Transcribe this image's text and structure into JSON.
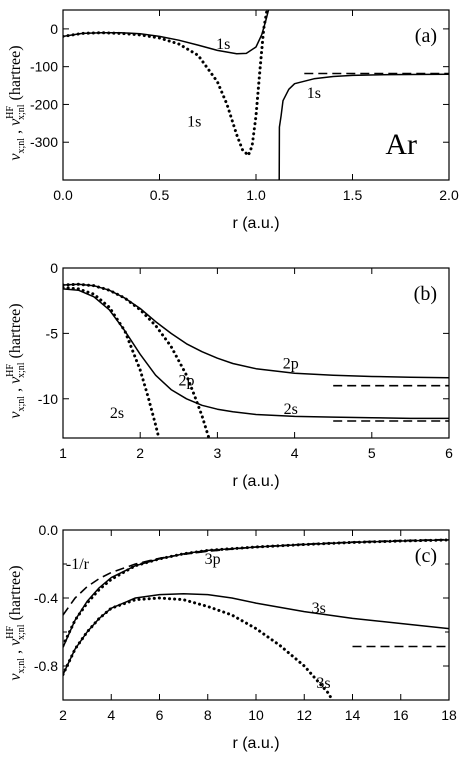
{
  "chart_data": [
    {
      "type": "line",
      "panel_label": "(a)",
      "annotation": "Ar",
      "xlabel": "r  (a.u.)",
      "ylabel": {
        "symbol": "v",
        "sub": "x;nl",
        "sep": " ,  ",
        "hf_symbol": "v",
        "hf_sup": "HF",
        "hf_sub": "x;nl",
        "unit": "(hartree)"
      },
      "xlim": [
        0,
        2.0
      ],
      "ylim": [
        -400,
        50
      ],
      "xticks": [
        0,
        0.5,
        1.0,
        1.5,
        2.0
      ],
      "xtick_labels": [
        "0.0",
        "0.5",
        "1.0",
        "1.5",
        "2.0"
      ],
      "yticks": [
        0,
        -100,
        -200,
        -300
      ],
      "ytick_labels": [
        "0",
        "-100",
        "-200",
        "-300"
      ],
      "series": [
        {
          "style": "solid",
          "x": [
            0,
            0.1,
            0.2,
            0.3,
            0.4,
            0.5,
            0.6,
            0.7,
            0.8,
            0.9,
            0.95,
            1.0,
            1.03,
            1.05,
            1.07
          ],
          "y": [
            -20,
            -12,
            -10,
            -10,
            -13,
            -20,
            -30,
            -43,
            -57,
            -66,
            -65,
            -48,
            -15,
            20,
            60
          ]
        },
        {
          "style": "solid",
          "x": [
            1.12,
            1.121,
            1.13,
            1.14,
            1.17,
            1.2,
            1.3,
            1.4,
            1.5,
            1.7,
            2.0
          ],
          "y": [
            -410,
            -260,
            -230,
            -190,
            -160,
            -145,
            -132,
            -126,
            -123,
            -121,
            -120
          ]
        },
        {
          "style": "dotted",
          "x": [
            0,
            0.1,
            0.2,
            0.3,
            0.4,
            0.5,
            0.6,
            0.7,
            0.8,
            0.85,
            0.9,
            0.93,
            0.96,
            0.98,
            1.0,
            1.02,
            1.04,
            1.06
          ],
          "y": [
            -20,
            -12,
            -10,
            -12,
            -16,
            -24,
            -40,
            -70,
            -140,
            -200,
            -280,
            -320,
            -335,
            -310,
            -230,
            -110,
            0,
            60
          ]
        },
        {
          "style": "dashed",
          "x": [
            1.25,
            2.0
          ],
          "y": [
            -118,
            -118
          ]
        }
      ],
      "labels": [
        {
          "text": "1s",
          "x": 0.83,
          "y": -40
        },
        {
          "text": "1s",
          "x": 0.68,
          "y": -245
        },
        {
          "text": "1s",
          "x": 1.3,
          "y": -170
        }
      ]
    },
    {
      "type": "line",
      "panel_label": "(b)",
      "xlabel": "r  (a.u.)",
      "ylabel": {
        "symbol": "v",
        "sub": "x;nl",
        "sep": " ,  ",
        "hf_symbol": "v",
        "hf_sup": "HF",
        "hf_sub": "x;nl",
        "unit": "(hartree)"
      },
      "xlim": [
        1,
        6
      ],
      "ylim": [
        -13,
        0
      ],
      "xticks": [
        1,
        2,
        3,
        4,
        5,
        6
      ],
      "xtick_labels": [
        "1",
        "2",
        "3",
        "4",
        "5",
        "6"
      ],
      "yticks": [
        0,
        -5,
        -10
      ],
      "ytick_labels": [
        "0",
        "-5",
        "-10"
      ],
      "series": [
        {
          "style": "solid",
          "x": [
            1,
            1.2,
            1.4,
            1.6,
            1.8,
            2.0,
            2.2,
            2.4,
            2.6,
            2.8,
            3.0,
            3.2,
            3.5,
            4.0,
            4.5,
            5.0,
            5.5,
            6.0
          ],
          "y": [
            -1.3,
            -1.25,
            -1.35,
            -1.7,
            -2.3,
            -3.1,
            -4.1,
            -5.0,
            -5.8,
            -6.4,
            -6.9,
            -7.3,
            -7.7,
            -8.05,
            -8.2,
            -8.3,
            -8.35,
            -8.4
          ]
        },
        {
          "style": "solid",
          "x": [
            1,
            1.2,
            1.4,
            1.6,
            1.8,
            2.0,
            2.2,
            2.4,
            2.6,
            2.8,
            3.0,
            3.2,
            3.5,
            4.0,
            4.5,
            5.0,
            5.5,
            6.0
          ],
          "y": [
            -1.6,
            -1.7,
            -2.2,
            -3.2,
            -4.8,
            -6.6,
            -8.2,
            -9.3,
            -10.0,
            -10.5,
            -10.8,
            -11.0,
            -11.2,
            -11.35,
            -11.4,
            -11.45,
            -11.5,
            -11.5
          ]
        },
        {
          "style": "dotted",
          "x": [
            1,
            1.2,
            1.4,
            1.6,
            1.8,
            2.0,
            2.1,
            2.2,
            2.25
          ],
          "y": [
            -1.5,
            -1.6,
            -2.0,
            -3.0,
            -4.8,
            -7.8,
            -9.8,
            -12.0,
            -13.2
          ]
        },
        {
          "style": "dotted",
          "x": [
            1,
            1.2,
            1.4,
            1.6,
            1.8,
            2.0,
            2.2,
            2.4,
            2.6,
            2.7,
            2.8,
            2.9
          ],
          "y": [
            -1.3,
            -1.25,
            -1.35,
            -1.7,
            -2.3,
            -3.2,
            -4.4,
            -6.0,
            -8.2,
            -9.7,
            -11.3,
            -13.2
          ]
        },
        {
          "style": "dashed",
          "x": [
            4.5,
            6.0
          ],
          "y": [
            -9.0,
            -9.0
          ]
        },
        {
          "style": "dashed",
          "x": [
            4.5,
            6.0
          ],
          "y": [
            -11.7,
            -11.7
          ]
        }
      ],
      "labels": [
        {
          "text": "2p",
          "x": 3.95,
          "y": -7.3
        },
        {
          "text": "2p",
          "x": 2.6,
          "y": -8.6
        },
        {
          "text": "2s",
          "x": 1.7,
          "y": -11.1
        },
        {
          "text": "2s",
          "x": 3.95,
          "y": -10.8
        }
      ]
    },
    {
      "type": "line",
      "panel_label": "(c)",
      "xlabel": "r  (a.u.)",
      "ylabel": {
        "symbol": "v",
        "sub": "x;nl",
        "sep": " ,  ",
        "hf_symbol": "v",
        "hf_sup": "HF",
        "hf_sub": "x;nl",
        "unit": "(hartree)"
      },
      "xlim": [
        2,
        18
      ],
      "ylim": [
        -1.0,
        0.0
      ],
      "xticks": [
        2,
        4,
        6,
        8,
        10,
        12,
        14,
        16,
        18
      ],
      "xtick_labels": [
        "2",
        "4",
        "6",
        "8",
        "10",
        "12",
        "14",
        "16",
        "18"
      ],
      "yticks": [
        0.0,
        -0.4,
        -0.8
      ],
      "ytick_labels": [
        "0.0",
        "-0.4",
        "-0.8"
      ],
      "minor_yticks": [
        -0.2,
        -0.6
      ],
      "series": [
        {
          "style": "solid",
          "x": [
            2,
            2.5,
            3,
            3.5,
            4,
            5,
            6,
            7,
            8,
            10,
            12,
            14,
            16,
            18
          ],
          "y": [
            -0.69,
            -0.53,
            -0.42,
            -0.34,
            -0.28,
            -0.21,
            -0.17,
            -0.14,
            -0.12,
            -0.1,
            -0.085,
            -0.073,
            -0.065,
            -0.058
          ]
        },
        {
          "style": "solid",
          "x": [
            2,
            2.5,
            3,
            3.5,
            4,
            5,
            6,
            7,
            8,
            9,
            10,
            12,
            14,
            16,
            18
          ],
          "y": [
            -0.85,
            -0.7,
            -0.6,
            -0.52,
            -0.46,
            -0.4,
            -0.38,
            -0.375,
            -0.38,
            -0.4,
            -0.43,
            -0.48,
            -0.52,
            -0.55,
            -0.58
          ]
        },
        {
          "style": "dotted",
          "x": [
            2,
            2.5,
            3,
            3.5,
            4,
            5,
            6,
            7,
            8,
            9,
            10,
            11,
            12,
            12.5,
            13,
            13.2
          ],
          "y": [
            -0.85,
            -0.7,
            -0.6,
            -0.52,
            -0.46,
            -0.41,
            -0.4,
            -0.41,
            -0.45,
            -0.5,
            -0.58,
            -0.68,
            -0.8,
            -0.88,
            -0.96,
            -1.01
          ]
        },
        {
          "style": "dotted",
          "x": [
            2,
            2.5,
            3,
            3.5,
            4,
            5,
            6,
            7,
            8,
            10,
            12,
            14,
            16,
            18
          ],
          "y": [
            -0.68,
            -0.53,
            -0.43,
            -0.35,
            -0.29,
            -0.21,
            -0.17,
            -0.14,
            -0.12,
            -0.1,
            -0.085,
            -0.073,
            -0.065,
            -0.058
          ]
        },
        {
          "style": "dashed",
          "x": [
            2,
            2.5,
            3,
            3.5,
            4,
            5,
            6,
            7,
            8,
            10,
            12,
            14,
            16,
            18
          ],
          "y": [
            -0.5,
            -0.4,
            -0.3333,
            -0.2857,
            -0.25,
            -0.2,
            -0.1667,
            -0.1429,
            -0.125,
            -0.1,
            -0.0833,
            -0.0714,
            -0.0625,
            -0.0556
          ]
        },
        {
          "style": "dashed",
          "x": [
            14,
            18
          ],
          "y": [
            -0.685,
            -0.685
          ]
        }
      ],
      "labels": [
        {
          "text": "-1/r",
          "x": 2.6,
          "y": -0.2
        },
        {
          "text": "3p",
          "x": 8.2,
          "y": -0.17
        },
        {
          "text": "3s",
          "x": 12.6,
          "y": -0.46
        },
        {
          "text": "3s",
          "x": 12.8,
          "y": -0.9
        }
      ]
    }
  ]
}
